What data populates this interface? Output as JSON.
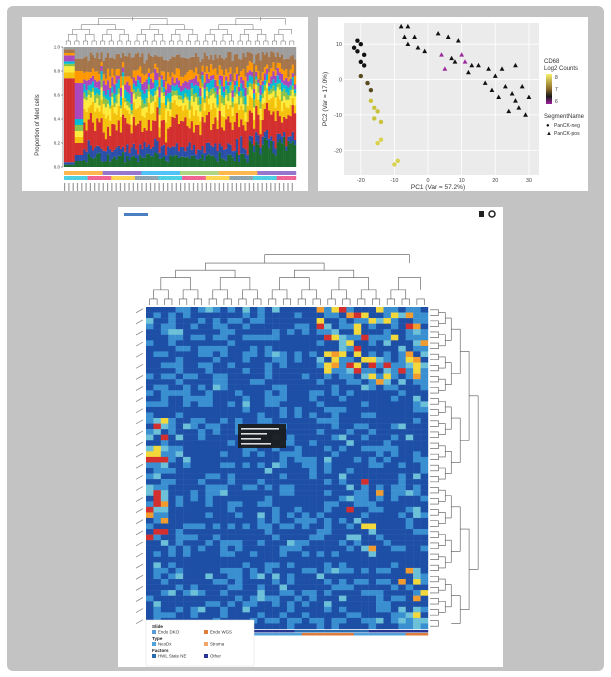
{
  "charts": {
    "bar": {
      "ylabel": "Proportion of Med cells",
      "yticks": [
        "1.0",
        "0.8",
        "0.6",
        "0.4",
        "0.2",
        "0.0"
      ]
    },
    "pca": {
      "xlabel": "PC1 (Var = 57.2%)",
      "ylabel": "PC2 (Var = 17.0%)",
      "xticks": [
        "-20",
        "-10",
        "0",
        "10",
        "20",
        "30"
      ],
      "yticks": [
        "10",
        "0",
        "-10",
        "-20"
      ],
      "legend": {
        "color_title_1": "CD68",
        "color_title_2": "Log2 Counts",
        "color_ticks": [
          "8",
          "7",
          "6"
        ],
        "shape_title": "SegmentName",
        "shape_items": [
          {
            "symbol": "●",
            "label": "PanCK-neg"
          },
          {
            "symbol": "▲",
            "label": "PanCK-pos"
          }
        ]
      }
    },
    "heatmap": {
      "legend": {
        "sections": [
          {
            "title": "Slide",
            "items": [
              {
                "label": "Endo DKO",
                "color": "#5b9bd5"
              },
              {
                "label": "Endo WGS",
                "color": "#e07b39"
              }
            ]
          },
          {
            "title": "Type",
            "items": [
              {
                "label": "NeoDx",
                "color": "#4fa3d8"
              },
              {
                "label": "Stroma",
                "color": "#f0a66b"
              }
            ]
          },
          {
            "title": "Factors",
            "items": [
              {
                "label": "HWL State NE",
                "color": "#2b6cb0"
              },
              {
                "label": "Other",
                "color": "#283593"
              }
            ]
          }
        ]
      }
    }
  },
  "chart_data": [
    {
      "type": "bar",
      "title": "",
      "xlabel": "",
      "ylabel": "Proportion of Med cells",
      "ylim": [
        0,
        1
      ],
      "stacked": true,
      "series_colors": [
        "#1a6b2d",
        "#2a4fa8",
        "#d32f2f",
        "#f4c20d",
        "#ffeb3b",
        "#8bc34a",
        "#00bcd4",
        "#ab47bc",
        "#ff9800",
        "#a4744b",
        "#9e9e9e"
      ],
      "note_levels": "stacked proportions across ~100 segments, each column sums to 1.0"
    },
    {
      "type": "scatter",
      "title": "",
      "xlabel": "PC1 (Var = 57.2%)",
      "ylabel": "PC2 (Var = 17.0%)",
      "xlim": [
        -25,
        33
      ],
      "ylim": [
        -27,
        16
      ],
      "color_scale": {
        "name": "CD68 Log2 Counts",
        "range": [
          6,
          8
        ]
      },
      "series": [
        {
          "name": "PanCK-neg",
          "marker": "circle",
          "points": [
            [
              -21,
              11
            ],
            [
              -20,
              10
            ],
            [
              -22,
              9
            ],
            [
              -21,
              8
            ],
            [
              -19,
              7
            ],
            [
              -20,
              5
            ],
            [
              -19,
              4
            ],
            [
              -20,
              1
            ],
            [
              -18,
              -1
            ],
            [
              -17,
              -3
            ],
            [
              -17,
              -6
            ],
            [
              -16,
              -8
            ],
            [
              -15,
              -9
            ],
            [
              -16,
              -11
            ],
            [
              -14,
              -12
            ],
            [
              -14,
              -17
            ],
            [
              -15,
              -18
            ],
            [
              -10,
              -24
            ],
            [
              -9,
              -23
            ]
          ]
        },
        {
          "name": "PanCK-pos",
          "marker": "triangle",
          "points": [
            [
              -8,
              15
            ],
            [
              -6,
              15
            ],
            [
              -7,
              12
            ],
            [
              -4,
              12
            ],
            [
              -6,
              10
            ],
            [
              -3,
              9
            ],
            [
              -1,
              8
            ],
            [
              3,
              13
            ],
            [
              6,
              12
            ],
            [
              9,
              11
            ],
            [
              4,
              7
            ],
            [
              7,
              6
            ],
            [
              10,
              7
            ],
            [
              11,
              5
            ],
            [
              13,
              4
            ],
            [
              15,
              4
            ],
            [
              18,
              3
            ],
            [
              20,
              1
            ],
            [
              22,
              3
            ],
            [
              23,
              -2
            ],
            [
              25,
              -4
            ],
            [
              26,
              -6
            ],
            [
              27,
              -8
            ],
            [
              28,
              -2
            ],
            [
              30,
              -5
            ],
            [
              24,
              -9
            ],
            [
              29,
              -10
            ],
            [
              21,
              -5
            ],
            [
              17,
              -1
            ],
            [
              19,
              -3
            ],
            [
              26,
              4
            ],
            [
              12,
              2
            ],
            [
              8,
              5
            ],
            [
              5,
              3
            ]
          ]
        }
      ]
    },
    {
      "type": "heatmap",
      "title": "",
      "rows": 58,
      "cols": 38,
      "color_scale": [
        "#1d4fa6",
        "#3a8fd1",
        "#6cc0d8",
        "#f3d83c",
        "#f29b2e",
        "#d32f2f"
      ],
      "note_values": "clustered expression heatmap with row and column dendrograms; predominantly low (blue) with hot spots in upper-right columns and left-edge rows"
    }
  ]
}
